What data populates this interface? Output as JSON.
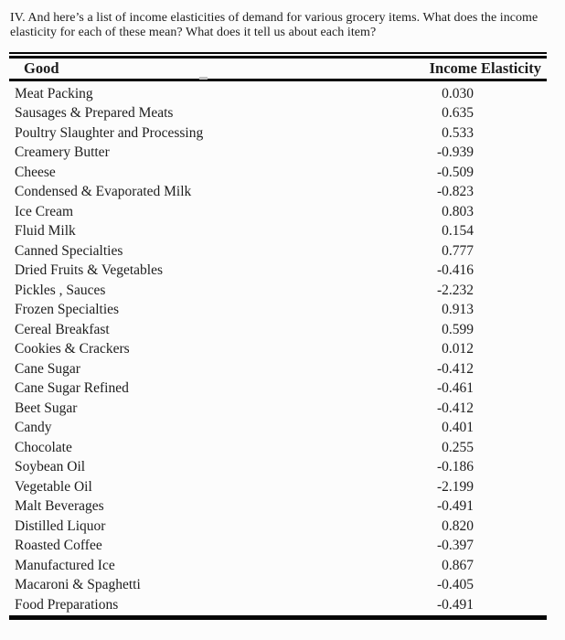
{
  "question": {
    "lines": [
      "IV. And here’s a list of income elasticities of demand for various grocery items. What does the income",
      "elasticity for each of these mean? What does it tell us about each item?"
    ]
  },
  "table": {
    "headers": {
      "good": "Good",
      "elasticity": "Income Elasticity"
    },
    "rows": [
      {
        "good": "Meat Packing",
        "value": "0.030"
      },
      {
        "good": "Sausages & Prepared Meats",
        "value": "0.635"
      },
      {
        "good": "Poultry Slaughter and Processing",
        "value": "0.533"
      },
      {
        "good": "Creamery Butter",
        "value": "-0.939"
      },
      {
        "good": "Cheese",
        "value": "-0.509"
      },
      {
        "good": "Condensed & Evaporated Milk",
        "value": "-0.823"
      },
      {
        "good": "Ice Cream",
        "value": "0.803"
      },
      {
        "good": "Fluid Milk",
        "value": "0.154"
      },
      {
        "good": "Canned Specialties",
        "value": "0.777"
      },
      {
        "good": "Dried Fruits & Vegetables",
        "value": "-0.416"
      },
      {
        "good": "Pickles , Sauces",
        "value": "-2.232"
      },
      {
        "good": "Frozen Specialties",
        "value": "0.913"
      },
      {
        "good": "Cereal Breakfast",
        "value": "0.599"
      },
      {
        "good": "Cookies & Crackers",
        "value": "0.012"
      },
      {
        "good": "Cane Sugar",
        "value": "-0.412"
      },
      {
        "good": "Cane Sugar Refined",
        "value": "-0.461"
      },
      {
        "good": "Beet Sugar",
        "value": "-0.412"
      },
      {
        "good": "Candy",
        "value": "0.401"
      },
      {
        "good": "Chocolate",
        "value": "0.255"
      },
      {
        "good": "Soybean Oil",
        "value": "-0.186"
      },
      {
        "good": "Vegetable Oil",
        "value": "-2.199"
      },
      {
        "good": "Malt Beverages",
        "value": "-0.491"
      },
      {
        "good": "Distilled Liquor",
        "value": "0.820"
      },
      {
        "good": "Roasted Coffee",
        "value": "-0.397"
      },
      {
        "good": "Manufactured Ice",
        "value": "0.867"
      },
      {
        "good": "Macaroni & Spaghetti",
        "value": "-0.405"
      },
      {
        "good": "Food Preparations",
        "value": "-0.491"
      }
    ]
  }
}
